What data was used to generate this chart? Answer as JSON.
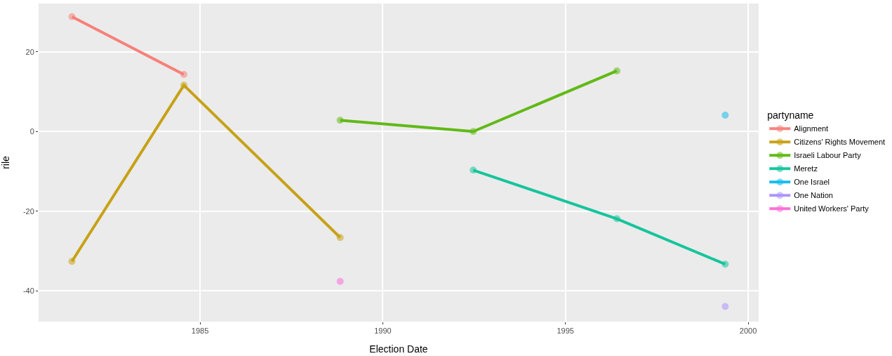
{
  "chart_data": {
    "type": "line",
    "xlabel": "Election Date",
    "ylabel": "rile",
    "legend_title": "partyname",
    "legend": "right",
    "grid": true,
    "marker": "circle",
    "line_style": "solid",
    "xlim": [
      "1980-08-01",
      "2000-04-15"
    ],
    "xticks": [
      {
        "value": "1985-01-01",
        "label": "1985"
      },
      {
        "value": "1990-01-01",
        "label": "1990"
      },
      {
        "value": "1995-01-01",
        "label": "1995"
      },
      {
        "value": "2000-01-01",
        "label": "2000"
      }
    ],
    "ylim": [
      -47.7,
      32.1
    ],
    "yticks": [
      -40,
      -20,
      0,
      20
    ],
    "series": [
      {
        "name": "Alignment",
        "color": "#f8766d",
        "x": [
          "1981-06-30",
          "1984-07-23"
        ],
        "values": [
          28.8,
          14.3
        ]
      },
      {
        "name": "Citizens' Rights Movement",
        "color": "#c49a00",
        "x": [
          "1981-06-30",
          "1984-07-23",
          "1988-11-01"
        ],
        "values": [
          -32.6,
          11.6,
          -26.6
        ]
      },
      {
        "name": "Israeli Labour Party",
        "color": "#53b400",
        "x": [
          "1988-11-01",
          "1992-06-23",
          "1996-05-29"
        ],
        "values": [
          2.8,
          0.0,
          15.2
        ]
      },
      {
        "name": "Meretz",
        "color": "#00c094",
        "x": [
          "1992-06-23",
          "1996-05-29",
          "1999-05-17"
        ],
        "values": [
          -9.7,
          -21.9,
          -33.3
        ]
      },
      {
        "name": "One Israel",
        "color": "#00b6eb",
        "x": [
          "1999-05-17"
        ],
        "values": [
          4.1
        ]
      },
      {
        "name": "One Nation",
        "color": "#a58aff",
        "x": [
          "1999-05-17"
        ],
        "values": [
          -43.9
        ]
      },
      {
        "name": "United Workers' Party",
        "color": "#fb61d7",
        "x": [
          "1988-11-01"
        ],
        "values": [
          -37.6
        ]
      }
    ]
  }
}
